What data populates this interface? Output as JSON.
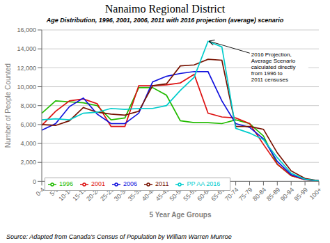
{
  "chart_data": {
    "type": "line",
    "title": "Nanaimo Regional District",
    "subtitle": "Age Distribution, 1996, 2001, 2006, 2011 with 2016 projection (average) scenario",
    "xlabel": "5 Year Age Groups",
    "ylabel": "Number of People Counted",
    "source": "Source: Adapted from Canada's Census of Population by William Warren Munroe",
    "annotation": {
      "text": "2016 Projection,\nAverage Scenario\ncalculated directly\nfrom 1996 to\n2011 censuses",
      "x": "60-64",
      "y": 14800
    },
    "categories": [
      "0-4",
      "5-9",
      "10-14",
      "15-19",
      "20-24",
      "25-29",
      "30-34",
      "35-39",
      "40-44",
      "45-49",
      "50-54",
      "55-59",
      "60-64",
      "65-69",
      "70-74",
      "75-79",
      "80-84",
      "85-89",
      "90-94",
      "95-99",
      "100+"
    ],
    "series": [
      {
        "name": "1996",
        "color": "#22BB00",
        "values": [
          7200,
          8500,
          8400,
          8300,
          8000,
          6500,
          6700,
          9900,
          9900,
          9100,
          6400,
          6200,
          6200,
          6100,
          6500,
          6100,
          4800,
          1800,
          600,
          180,
          40
        ]
      },
      {
        "name": "2001",
        "color": "#DD1111",
        "values": [
          5900,
          7400,
          8500,
          8700,
          8200,
          5800,
          5800,
          10100,
          10100,
          10200,
          10400,
          11300,
          7200,
          6800,
          6700,
          6100,
          3900,
          1800,
          600,
          170,
          40
        ]
      },
      {
        "name": "2006",
        "color": "#1111DD",
        "values": [
          5400,
          6100,
          7900,
          8800,
          7100,
          6100,
          6100,
          7200,
          10500,
          11100,
          11400,
          11600,
          11600,
          8500,
          6100,
          5700,
          4500,
          2100,
          700,
          200,
          50
        ]
      },
      {
        "name": "2011",
        "color": "#771100",
        "values": [
          6000,
          5900,
          6400,
          7800,
          7300,
          7100,
          7000,
          7400,
          10100,
          10300,
          12200,
          12300,
          12900,
          12800,
          5800,
          5800,
          5500,
          3000,
          1100,
          300,
          60
        ]
      },
      {
        "name": "PP AA 2016",
        "color": "#00CCCC",
        "values": [
          6500,
          6600,
          6500,
          7200,
          7300,
          7700,
          7600,
          7700,
          7700,
          8000,
          9600,
          11000,
          14800,
          14200,
          5600,
          5100,
          4400,
          2500,
          850,
          220,
          45
        ]
      }
    ],
    "ylim": [
      0,
      16000
    ],
    "yticks": [
      0,
      {
        "value": 2000,
        "label": "2,000"
      },
      {
        "value": 4000,
        "label": "4,000"
      },
      {
        "value": 6000,
        "label": "6,000"
      },
      {
        "value": 8000,
        "label": "8,000"
      },
      {
        "value": 10000,
        "label": "10,000"
      },
      {
        "value": 12000,
        "label": "12,000"
      },
      {
        "value": 14000,
        "label": "14,000"
      },
      {
        "value": 16000,
        "label": "16,000"
      }
    ],
    "grid": true,
    "legend": "lower left"
  }
}
